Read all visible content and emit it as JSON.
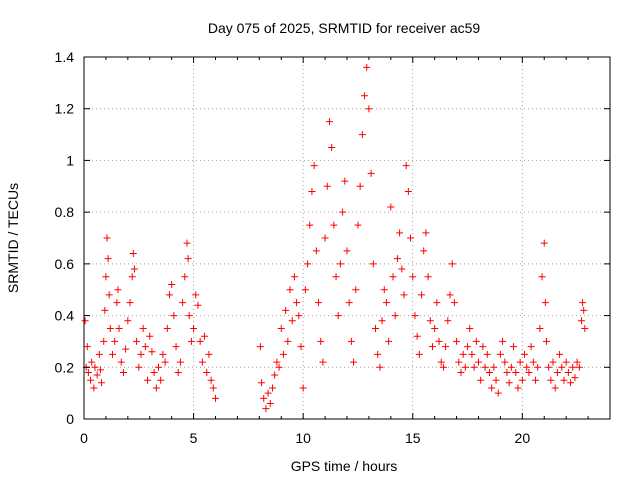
{
  "chart_data": {
    "type": "scatter",
    "title": "Day 075 of 2025, SRMTID for receiver ac59",
    "xlabel": "GPS time / hours",
    "ylabel": "SRMTID / TECUs",
    "xlim": [
      0,
      24
    ],
    "ylim": [
      0,
      1.4
    ],
    "x_ticks": [
      0,
      5,
      10,
      15,
      20
    ],
    "x_tick_labels": [
      "0",
      "5",
      "10",
      "15",
      "20"
    ],
    "y_ticks": [
      0,
      0.2,
      0.4,
      0.6,
      0.8,
      1.0,
      1.2,
      1.4
    ],
    "y_tick_labels": [
      "0",
      "0.2",
      "0.4",
      "0.6",
      "0.8",
      "1",
      "1.2",
      "1.4"
    ],
    "grid": true,
    "marker": "+",
    "series_color": "#ff0000",
    "data_gaps_hours": [
      [
        6.0,
        8.0
      ],
      [
        23.0,
        24.0
      ]
    ],
    "series": [
      {
        "name": "SRMTID",
        "points": [
          [
            0.05,
            0.38
          ],
          [
            0.1,
            0.2
          ],
          [
            0.15,
            0.28
          ],
          [
            0.2,
            0.18
          ],
          [
            0.3,
            0.15
          ],
          [
            0.35,
            0.22
          ],
          [
            0.45,
            0.12
          ],
          [
            0.5,
            0.2
          ],
          [
            0.6,
            0.17
          ],
          [
            0.7,
            0.25
          ],
          [
            0.75,
            0.19
          ],
          [
            0.8,
            0.14
          ],
          [
            0.9,
            0.3
          ],
          [
            0.95,
            0.42
          ],
          [
            1.0,
            0.55
          ],
          [
            1.05,
            0.7
          ],
          [
            1.1,
            0.62
          ],
          [
            1.15,
            0.48
          ],
          [
            1.2,
            0.35
          ],
          [
            1.3,
            0.25
          ],
          [
            1.4,
            0.3
          ],
          [
            1.5,
            0.45
          ],
          [
            1.55,
            0.5
          ],
          [
            1.6,
            0.35
          ],
          [
            1.7,
            0.22
          ],
          [
            1.8,
            0.18
          ],
          [
            1.9,
            0.27
          ],
          [
            2.0,
            0.38
          ],
          [
            2.1,
            0.45
          ],
          [
            2.2,
            0.55
          ],
          [
            2.25,
            0.64
          ],
          [
            2.3,
            0.58
          ],
          [
            2.4,
            0.3
          ],
          [
            2.5,
            0.2
          ],
          [
            2.6,
            0.25
          ],
          [
            2.7,
            0.35
          ],
          [
            2.8,
            0.28
          ],
          [
            2.9,
            0.15
          ],
          [
            3.0,
            0.32
          ],
          [
            3.1,
            0.26
          ],
          [
            3.2,
            0.18
          ],
          [
            3.3,
            0.12
          ],
          [
            3.4,
            0.2
          ],
          [
            3.5,
            0.15
          ],
          [
            3.6,
            0.25
          ],
          [
            3.7,
            0.22
          ],
          [
            3.8,
            0.35
          ],
          [
            3.9,
            0.48
          ],
          [
            4.0,
            0.52
          ],
          [
            4.1,
            0.4
          ],
          [
            4.2,
            0.28
          ],
          [
            4.3,
            0.18
          ],
          [
            4.4,
            0.22
          ],
          [
            4.5,
            0.45
          ],
          [
            4.6,
            0.55
          ],
          [
            4.7,
            0.68
          ],
          [
            4.75,
            0.62
          ],
          [
            4.8,
            0.4
          ],
          [
            4.9,
            0.3
          ],
          [
            5.0,
            0.35
          ],
          [
            5.1,
            0.48
          ],
          [
            5.2,
            0.44
          ],
          [
            5.3,
            0.3
          ],
          [
            5.4,
            0.22
          ],
          [
            5.5,
            0.32
          ],
          [
            5.6,
            0.18
          ],
          [
            5.7,
            0.25
          ],
          [
            5.8,
            0.15
          ],
          [
            5.9,
            0.12
          ],
          [
            6.0,
            0.08
          ],
          [
            8.05,
            0.28
          ],
          [
            8.1,
            0.14
          ],
          [
            8.2,
            0.08
          ],
          [
            8.3,
            0.04
          ],
          [
            8.4,
            0.1
          ],
          [
            8.5,
            0.06
          ],
          [
            8.6,
            0.12
          ],
          [
            8.7,
            0.17
          ],
          [
            8.8,
            0.22
          ],
          [
            8.9,
            0.2
          ],
          [
            9.0,
            0.35
          ],
          [
            9.1,
            0.25
          ],
          [
            9.2,
            0.42
          ],
          [
            9.3,
            0.3
          ],
          [
            9.4,
            0.5
          ],
          [
            9.5,
            0.38
          ],
          [
            9.6,
            0.55
          ],
          [
            9.7,
            0.45
          ],
          [
            9.8,
            0.4
          ],
          [
            9.9,
            0.28
          ],
          [
            10.0,
            0.12
          ],
          [
            10.1,
            0.5
          ],
          [
            10.2,
            0.6
          ],
          [
            10.3,
            0.75
          ],
          [
            10.4,
            0.88
          ],
          [
            10.5,
            0.98
          ],
          [
            10.6,
            0.65
          ],
          [
            10.7,
            0.45
          ],
          [
            10.8,
            0.3
          ],
          [
            10.9,
            0.22
          ],
          [
            11.0,
            0.7
          ],
          [
            11.1,
            0.9
          ],
          [
            11.2,
            1.15
          ],
          [
            11.3,
            1.05
          ],
          [
            11.4,
            0.75
          ],
          [
            11.5,
            0.55
          ],
          [
            11.6,
            0.4
          ],
          [
            11.7,
            0.6
          ],
          [
            11.8,
            0.8
          ],
          [
            11.9,
            0.92
          ],
          [
            12.0,
            0.65
          ],
          [
            12.1,
            0.45
          ],
          [
            12.2,
            0.3
          ],
          [
            12.3,
            0.22
          ],
          [
            12.4,
            0.5
          ],
          [
            12.5,
            0.75
          ],
          [
            12.6,
            0.9
          ],
          [
            12.7,
            1.1
          ],
          [
            12.8,
            1.25
          ],
          [
            12.9,
            1.36
          ],
          [
            13.0,
            1.2
          ],
          [
            13.1,
            0.95
          ],
          [
            13.2,
            0.6
          ],
          [
            13.3,
            0.35
          ],
          [
            13.4,
            0.25
          ],
          [
            13.5,
            0.2
          ],
          [
            13.6,
            0.38
          ],
          [
            13.7,
            0.5
          ],
          [
            13.8,
            0.45
          ],
          [
            13.9,
            0.3
          ],
          [
            14.0,
            0.82
          ],
          [
            14.1,
            0.55
          ],
          [
            14.2,
            0.4
          ],
          [
            14.3,
            0.62
          ],
          [
            14.4,
            0.72
          ],
          [
            14.5,
            0.58
          ],
          [
            14.6,
            0.48
          ],
          [
            14.7,
            0.98
          ],
          [
            14.8,
            0.88
          ],
          [
            14.9,
            0.7
          ],
          [
            15.0,
            0.55
          ],
          [
            15.1,
            0.4
          ],
          [
            15.2,
            0.32
          ],
          [
            15.3,
            0.25
          ],
          [
            15.4,
            0.48
          ],
          [
            15.5,
            0.65
          ],
          [
            15.6,
            0.72
          ],
          [
            15.7,
            0.55
          ],
          [
            15.8,
            0.38
          ],
          [
            15.9,
            0.28
          ],
          [
            16.0,
            0.35
          ],
          [
            16.1,
            0.45
          ],
          [
            16.2,
            0.3
          ],
          [
            16.3,
            0.22
          ],
          [
            16.4,
            0.2
          ],
          [
            16.5,
            0.28
          ],
          [
            16.6,
            0.38
          ],
          [
            16.7,
            0.48
          ],
          [
            16.8,
            0.6
          ],
          [
            16.9,
            0.45
          ],
          [
            17.0,
            0.3
          ],
          [
            17.1,
            0.22
          ],
          [
            17.2,
            0.18
          ],
          [
            17.3,
            0.25
          ],
          [
            17.4,
            0.2
          ],
          [
            17.5,
            0.28
          ],
          [
            17.6,
            0.35
          ],
          [
            17.7,
            0.25
          ],
          [
            17.8,
            0.2
          ],
          [
            17.9,
            0.3
          ],
          [
            18.0,
            0.22
          ],
          [
            18.1,
            0.15
          ],
          [
            18.2,
            0.28
          ],
          [
            18.3,
            0.2
          ],
          [
            18.4,
            0.25
          ],
          [
            18.5,
            0.18
          ],
          [
            18.6,
            0.12
          ],
          [
            18.7,
            0.2
          ],
          [
            18.8,
            0.15
          ],
          [
            18.9,
            0.1
          ],
          [
            19.0,
            0.25
          ],
          [
            19.1,
            0.3
          ],
          [
            19.2,
            0.22
          ],
          [
            19.3,
            0.18
          ],
          [
            19.4,
            0.14
          ],
          [
            19.5,
            0.2
          ],
          [
            19.6,
            0.28
          ],
          [
            19.7,
            0.18
          ],
          [
            19.8,
            0.12
          ],
          [
            19.9,
            0.22
          ],
          [
            20.0,
            0.15
          ],
          [
            20.1,
            0.25
          ],
          [
            20.2,
            0.2
          ],
          [
            20.3,
            0.18
          ],
          [
            20.4,
            0.28
          ],
          [
            20.5,
            0.22
          ],
          [
            20.6,
            0.15
          ],
          [
            20.7,
            0.2
          ],
          [
            20.8,
            0.35
          ],
          [
            20.9,
            0.55
          ],
          [
            21.0,
            0.68
          ],
          [
            21.05,
            0.45
          ],
          [
            21.1,
            0.3
          ],
          [
            21.2,
            0.2
          ],
          [
            21.3,
            0.15
          ],
          [
            21.4,
            0.22
          ],
          [
            21.5,
            0.12
          ],
          [
            21.6,
            0.18
          ],
          [
            21.7,
            0.25
          ],
          [
            21.8,
            0.2
          ],
          [
            21.9,
            0.15
          ],
          [
            22.0,
            0.22
          ],
          [
            22.1,
            0.18
          ],
          [
            22.2,
            0.14
          ],
          [
            22.3,
            0.2
          ],
          [
            22.4,
            0.16
          ],
          [
            22.5,
            0.22
          ],
          [
            22.6,
            0.2
          ],
          [
            22.7,
            0.38
          ],
          [
            22.75,
            0.45
          ],
          [
            22.8,
            0.42
          ],
          [
            22.85,
            0.35
          ]
        ]
      }
    ]
  }
}
